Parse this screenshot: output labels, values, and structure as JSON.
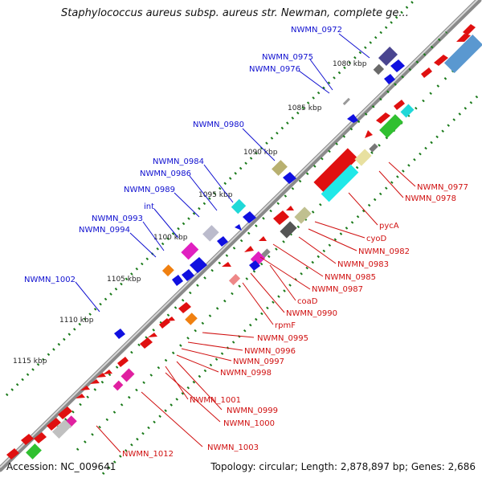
{
  "header": {
    "title": "Staphylococcus aureus subsp. aureus str. Newman, complete ge..."
  },
  "footer": {
    "accession": "Accession: NC_009641",
    "summary": "Topology: circular; Length: 2,878,897 bp; Genes: 2,686"
  },
  "colors": {
    "forward_label": "#1010d0",
    "reverse_label": "#d01010",
    "backbone": "#8c8c8c",
    "tick": "#1a7a1a"
  },
  "ticks": [
    "1080 kbp",
    "1085 kbp",
    "1090 kbp",
    "1095 kbp",
    "1100 kbp",
    "1105 kbp",
    "1110 kbp",
    "1115 kbp"
  ],
  "forward_labels": [
    "NWMN_0972",
    "NWMN_0975",
    "NWMN_0976",
    "NWMN_0980",
    "NWMN_0984",
    "NWMN_0986",
    "NWMN_0989",
    "int",
    "NWMN_0993",
    "NWMN_0994",
    "NWMN_1002"
  ],
  "reverse_labels": [
    "NWMN_0977",
    "NWMN_0978",
    "pycA",
    "cyoD",
    "NWMN_0982",
    "NWMN_0983",
    "NWMN_0985",
    "NWMN_0987",
    "coaD",
    "NWMN_0990",
    "rpmF",
    "NWMN_0995",
    "NWMN_0996",
    "NWMN_0997",
    "NWMN_0998",
    "NWMN_1001",
    "NWMN_0999",
    "NWMN_1000",
    "NWMN_1003",
    "NWMN_1012"
  ]
}
